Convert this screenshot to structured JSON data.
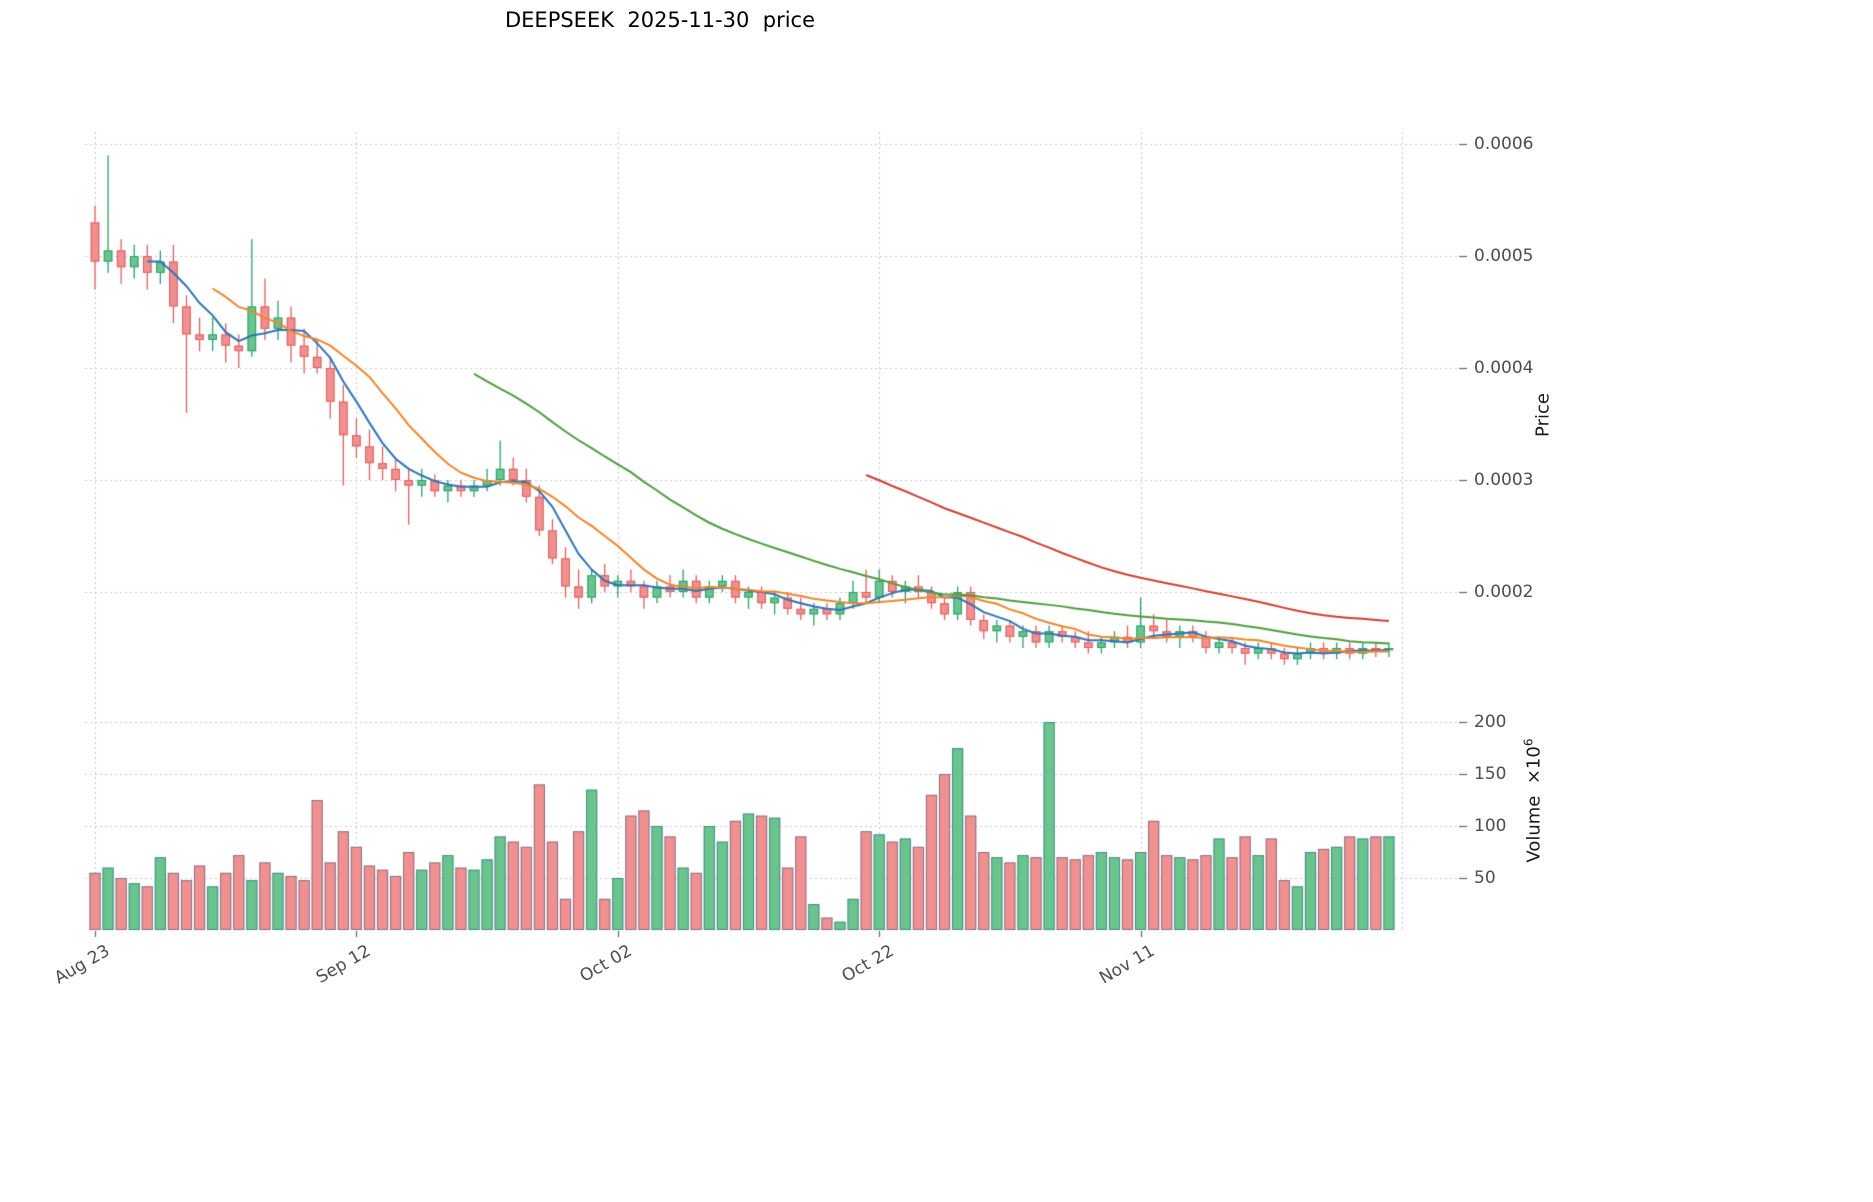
{
  "title": "DEEPSEEK  2025-11-30  price",
  "axes": {
    "price_axis_label": "Price",
    "volume_axis_label_base": "Volume  ×10",
    "volume_axis_label_exponent": "6",
    "price_tick_labels": [
      "0.0002",
      "0.0003",
      "0.0004",
      "0.0005",
      "0.0006"
    ],
    "price_tick_values": [
      0.0002,
      0.0003,
      0.0004,
      0.0005,
      0.0006
    ],
    "volume_tick_labels": [
      "50",
      "100",
      "150",
      "200"
    ],
    "volume_tick_values": [
      50,
      100,
      150,
      200
    ],
    "x_tick_labels": [
      "Aug 23",
      "Sep 12",
      "Oct 02",
      "Oct 22",
      "Nov 11"
    ],
    "x_tick_indices": [
      0,
      20,
      40,
      60,
      80
    ],
    "extra_vertical_gridline_index": 100
  },
  "style": {
    "background": "#ffffff",
    "grid_color": "#cccccc",
    "tick_color": "#666666",
    "text_color": "#4d4d4d",
    "up_color": "#69c48e",
    "up_edge": "#2f9e68",
    "down_color": "#f09090",
    "down_edge": "#dd6060",
    "volume_edge": "rgba(45,90,130,0.55)",
    "ma_colors": [
      "#2e75b6",
      "#f0862b",
      "#4f9d3f",
      "#cf3f33"
    ]
  },
  "chart_data": {
    "type": "candlestick",
    "title": "DEEPSEEK  2025-11-30  price",
    "x_axis": "daily sessions, labeled ticks every 20 days",
    "price_unit": 0.0001,
    "price_range": [
      0.000105,
      0.00062
    ],
    "volume_unit_millions": true,
    "volume_range": [
      0,
      210
    ],
    "moving_average_periods": [
      5,
      10,
      30,
      60
    ],
    "open": [
      5.3,
      4.95,
      5.05,
      4.9,
      5.0,
      4.85,
      4.95,
      4.55,
      4.3,
      4.25,
      4.3,
      4.2,
      4.15,
      4.55,
      4.35,
      4.45,
      4.2,
      4.1,
      4.0,
      3.7,
      3.4,
      3.3,
      3.15,
      3.1,
      3.0,
      2.95,
      3.0,
      2.9,
      2.95,
      2.9,
      2.95,
      3.0,
      3.1,
      3.0,
      2.85,
      2.55,
      2.3,
      2.05,
      1.95,
      2.15,
      2.05,
      2.1,
      2.05,
      1.95,
      2.05,
      2.0,
      2.1,
      1.95,
      2.05,
      2.1,
      1.95,
      2.0,
      1.9,
      1.95,
      1.85,
      1.8,
      1.85,
      1.8,
      1.9,
      2.0,
      1.95,
      2.1,
      2.0,
      2.05,
      2.0,
      1.9,
      1.8,
      2.0,
      1.75,
      1.65,
      1.7,
      1.6,
      1.65,
      1.55,
      1.65,
      1.6,
      1.55,
      1.5,
      1.55,
      1.6,
      1.55,
      1.7,
      1.65,
      1.6,
      1.65,
      1.6,
      1.5,
      1.55,
      1.5,
      1.45,
      1.5,
      1.45,
      1.4,
      1.45,
      1.5,
      1.45,
      1.5,
      1.45,
      1.5,
      1.48
    ],
    "high": [
      5.45,
      5.9,
      5.15,
      5.1,
      5.1,
      5.05,
      5.1,
      4.65,
      4.45,
      4.45,
      4.4,
      4.3,
      5.15,
      4.8,
      4.6,
      4.55,
      4.35,
      4.25,
      4.1,
      3.85,
      3.55,
      3.45,
      3.3,
      3.2,
      3.1,
      3.1,
      3.05,
      3.0,
      3.0,
      3.0,
      3.1,
      3.35,
      3.2,
      3.1,
      2.95,
      2.65,
      2.4,
      2.2,
      2.2,
      2.25,
      2.15,
      2.2,
      2.1,
      2.1,
      2.15,
      2.2,
      2.15,
      2.1,
      2.15,
      2.15,
      2.05,
      2.05,
      2.0,
      2.0,
      1.95,
      1.9,
      1.9,
      1.95,
      2.1,
      2.2,
      2.2,
      2.15,
      2.1,
      2.15,
      2.05,
      1.95,
      2.05,
      2.05,
      1.8,
      1.75,
      1.75,
      1.7,
      1.7,
      1.7,
      1.7,
      1.65,
      1.65,
      1.6,
      1.65,
      1.7,
      1.95,
      1.8,
      1.75,
      1.7,
      1.7,
      1.65,
      1.6,
      1.6,
      1.55,
      1.55,
      1.55,
      1.5,
      1.5,
      1.55,
      1.55,
      1.55,
      1.55,
      1.55,
      1.55,
      1.55
    ],
    "low": [
      4.7,
      4.85,
      4.75,
      4.8,
      4.7,
      4.75,
      4.4,
      3.6,
      4.15,
      4.15,
      4.05,
      4.0,
      4.1,
      4.25,
      4.25,
      4.05,
      3.95,
      3.95,
      3.55,
      2.95,
      3.2,
      3.0,
      3.0,
      2.9,
      2.6,
      2.85,
      2.85,
      2.8,
      2.85,
      2.85,
      2.9,
      2.95,
      2.95,
      2.8,
      2.5,
      2.25,
      1.95,
      1.85,
      1.9,
      2.0,
      1.95,
      2.0,
      1.85,
      1.9,
      1.95,
      1.95,
      1.9,
      1.9,
      2.0,
      1.9,
      1.85,
      1.85,
      1.8,
      1.8,
      1.75,
      1.7,
      1.75,
      1.75,
      1.85,
      1.9,
      1.9,
      1.95,
      1.9,
      1.95,
      1.85,
      1.75,
      1.75,
      1.7,
      1.58,
      1.55,
      1.55,
      1.5,
      1.5,
      1.5,
      1.55,
      1.5,
      1.45,
      1.45,
      1.5,
      1.5,
      1.5,
      1.6,
      1.55,
      1.5,
      1.55,
      1.45,
      1.45,
      1.45,
      1.35,
      1.4,
      1.4,
      1.35,
      1.35,
      1.4,
      1.4,
      1.4,
      1.4,
      1.4,
      1.42,
      1.42
    ],
    "close": [
      4.95,
      5.05,
      4.9,
      5.0,
      4.85,
      4.95,
      4.55,
      4.3,
      4.25,
      4.3,
      4.2,
      4.15,
      4.55,
      4.35,
      4.45,
      4.2,
      4.1,
      4.0,
      3.7,
      3.4,
      3.3,
      3.15,
      3.1,
      3.0,
      2.95,
      3.0,
      2.9,
      2.95,
      2.9,
      2.95,
      3.0,
      3.1,
      3.0,
      2.85,
      2.55,
      2.3,
      2.05,
      1.95,
      2.15,
      2.05,
      2.1,
      2.05,
      1.95,
      2.05,
      2.0,
      2.1,
      1.95,
      2.05,
      2.1,
      1.95,
      2.0,
      1.9,
      1.95,
      1.85,
      1.8,
      1.85,
      1.8,
      1.9,
      2.0,
      1.95,
      2.1,
      2.0,
      2.05,
      2.0,
      1.9,
      1.8,
      2.0,
      1.75,
      1.65,
      1.7,
      1.6,
      1.65,
      1.55,
      1.65,
      1.6,
      1.55,
      1.5,
      1.55,
      1.6,
      1.55,
      1.7,
      1.65,
      1.6,
      1.65,
      1.6,
      1.5,
      1.55,
      1.5,
      1.45,
      1.5,
      1.45,
      1.4,
      1.45,
      1.5,
      1.45,
      1.5,
      1.45,
      1.5,
      1.48,
      1.5
    ],
    "volume_millions": [
      55,
      60,
      50,
      45,
      42,
      70,
      55,
      48,
      62,
      42,
      55,
      72,
      48,
      65,
      55,
      52,
      48,
      125,
      65,
      95,
      80,
      62,
      58,
      52,
      75,
      58,
      65,
      72,
      60,
      58,
      68,
      90,
      85,
      80,
      140,
      85,
      30,
      95,
      135,
      30,
      50,
      110,
      115,
      100,
      90,
      60,
      55,
      100,
      85,
      105,
      112,
      110,
      108,
      60,
      90,
      25,
      12,
      8,
      30,
      95,
      92,
      85,
      88,
      80,
      130,
      150,
      175,
      110,
      75,
      70,
      65,
      72,
      70,
      200,
      70,
      68,
      72,
      75,
      70,
      68,
      75,
      105,
      72,
      70,
      68,
      72,
      88,
      70,
      90,
      72,
      88,
      48,
      42,
      75,
      78,
      80,
      90,
      88,
      90,
      90
    ]
  }
}
